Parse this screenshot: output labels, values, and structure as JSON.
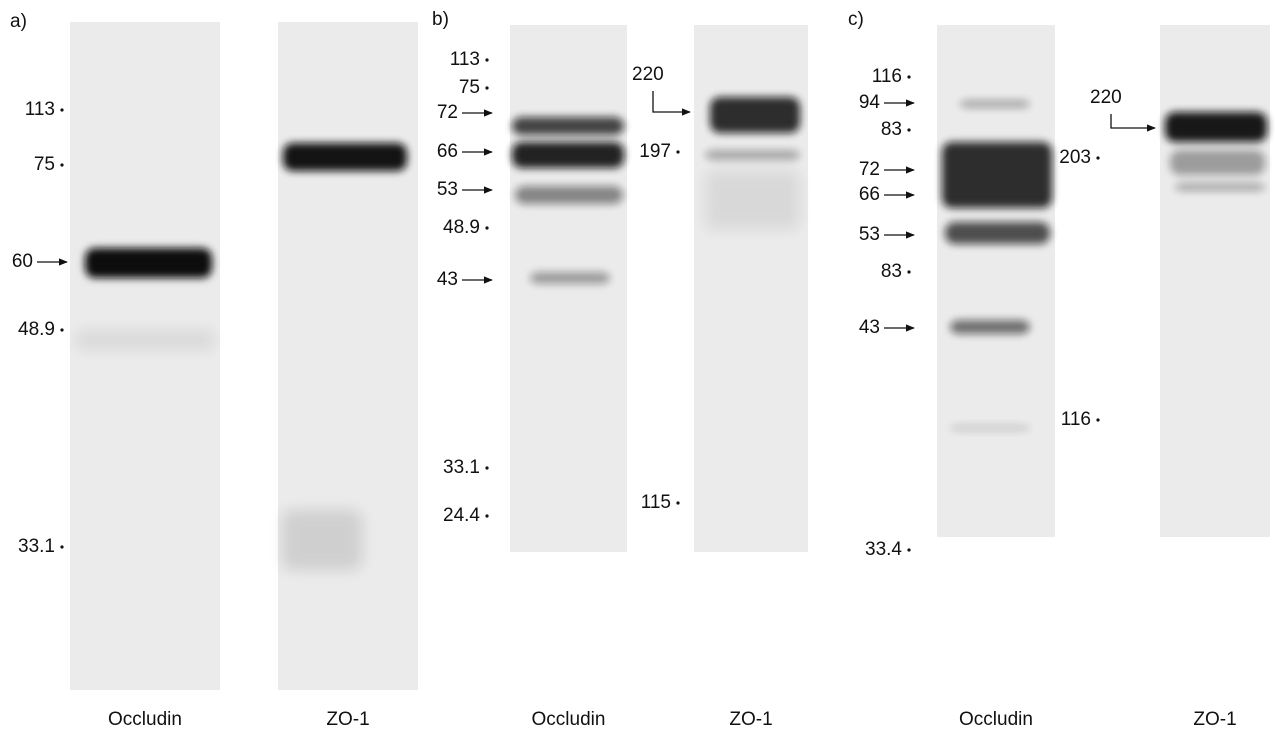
{
  "panels": [
    {
      "label": "a)",
      "lanes": [
        {
          "name": "Occludin",
          "markers": [
            "113",
            "75",
            "60",
            "48.9",
            "33.1"
          ]
        },
        {
          "name": "ZO-1",
          "markers": []
        }
      ]
    },
    {
      "label": "b)",
      "lanes": [
        {
          "name": "Occludin",
          "markers": [
            "113",
            "75",
            "72",
            "66",
            "53",
            "48.9",
            "43",
            "33.1",
            "24.4"
          ]
        },
        {
          "name": "ZO-1",
          "markers": [
            "220",
            "197",
            "115"
          ]
        }
      ]
    },
    {
      "label": "c)",
      "lanes": [
        {
          "name": "Occludin",
          "markers": [
            "116",
            "94",
            "83",
            "72",
            "66",
            "53",
            "83",
            "43",
            "33.4"
          ]
        },
        {
          "name": "ZO-1",
          "markers": [
            "220",
            "203",
            "116"
          ]
        }
      ]
    }
  ]
}
